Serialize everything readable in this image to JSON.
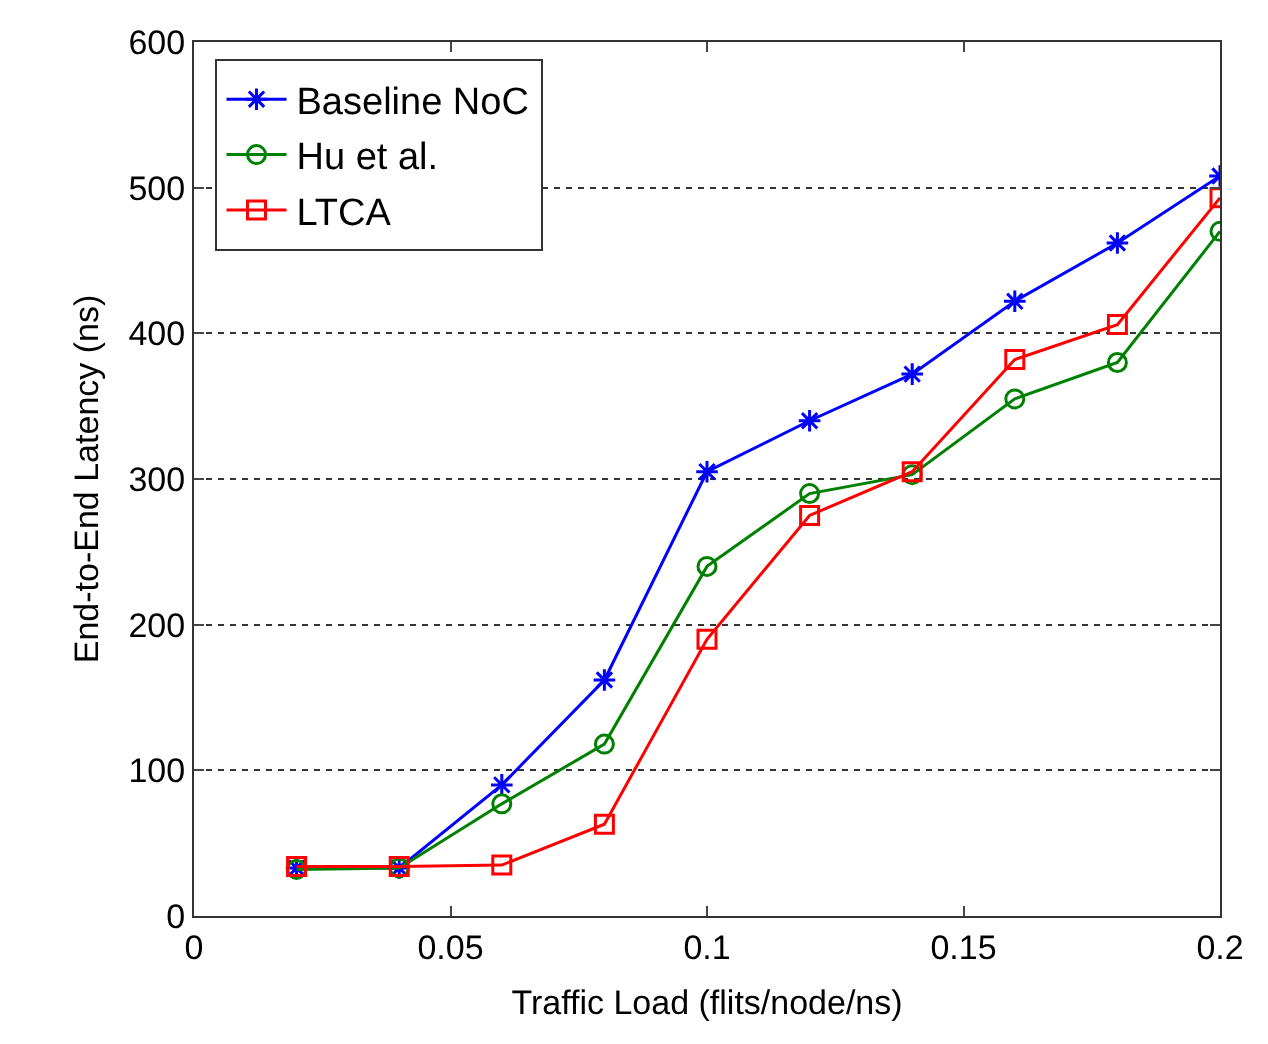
{
  "chart_data": {
    "type": "line",
    "xlabel": "Traffic Load (flits/node/ns)",
    "ylabel": "End-to-End Latency (ns)",
    "x": [
      0.02,
      0.04,
      0.06,
      0.08,
      0.1,
      0.12,
      0.14,
      0.16,
      0.18,
      0.2
    ],
    "series": [
      {
        "name": "Baseline NoC",
        "color": "#0000ff",
        "marker": "cross",
        "values": [
          33,
          33,
          90,
          162,
          305,
          340,
          372,
          422,
          462,
          508
        ]
      },
      {
        "name": "Hu et al.",
        "color": "#008000",
        "marker": "circle",
        "values": [
          32,
          33,
          77,
          118,
          240,
          290,
          303,
          355,
          380,
          470
        ]
      },
      {
        "name": "LTCA",
        "color": "#ff0000",
        "marker": "square",
        "values": [
          34,
          34,
          35,
          63,
          190,
          275,
          305,
          382,
          406,
          493
        ]
      }
    ],
    "xlim": [
      0,
      0.2
    ],
    "xticks": [
      0,
      0.05,
      0.1,
      0.15,
      0.2
    ],
    "ylim": [
      0,
      600
    ],
    "yticks": [
      0,
      100,
      200,
      300,
      400,
      500,
      600
    ],
    "grid": "y",
    "legend": "top left",
    "line_style": "solid"
  }
}
